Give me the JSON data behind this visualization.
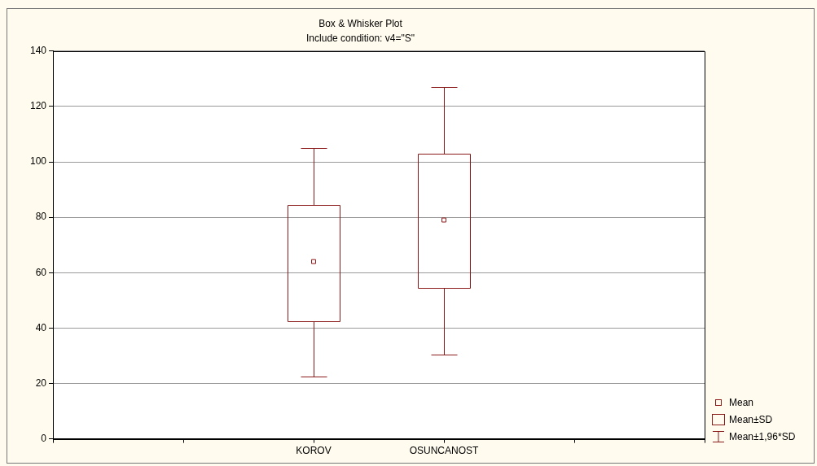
{
  "chart_data": {
    "type": "box",
    "title": "Box & Whisker Plot",
    "subtitle": "Include condition: v4=\"S\"",
    "categories": [
      null,
      null,
      "KOROV",
      "OSUNCANOST",
      null,
      null
    ],
    "boxes": [
      null,
      null,
      {
        "low": 22.5,
        "q1": 42.5,
        "q3": 84.5,
        "high": 105,
        "mean": 64
      },
      {
        "low": 30.5,
        "q1": 54.5,
        "q3": 103,
        "high": 127,
        "mean": 79
      },
      null,
      null
    ],
    "color": "#8b1a1a",
    "ylim": [
      0,
      140
    ],
    "yticks": [
      0,
      20,
      40,
      60,
      80,
      100,
      120,
      140
    ],
    "grid": "y",
    "annotations": [
      "Mean",
      "Mean±SD",
      "Mean±1,96*SD"
    ]
  }
}
